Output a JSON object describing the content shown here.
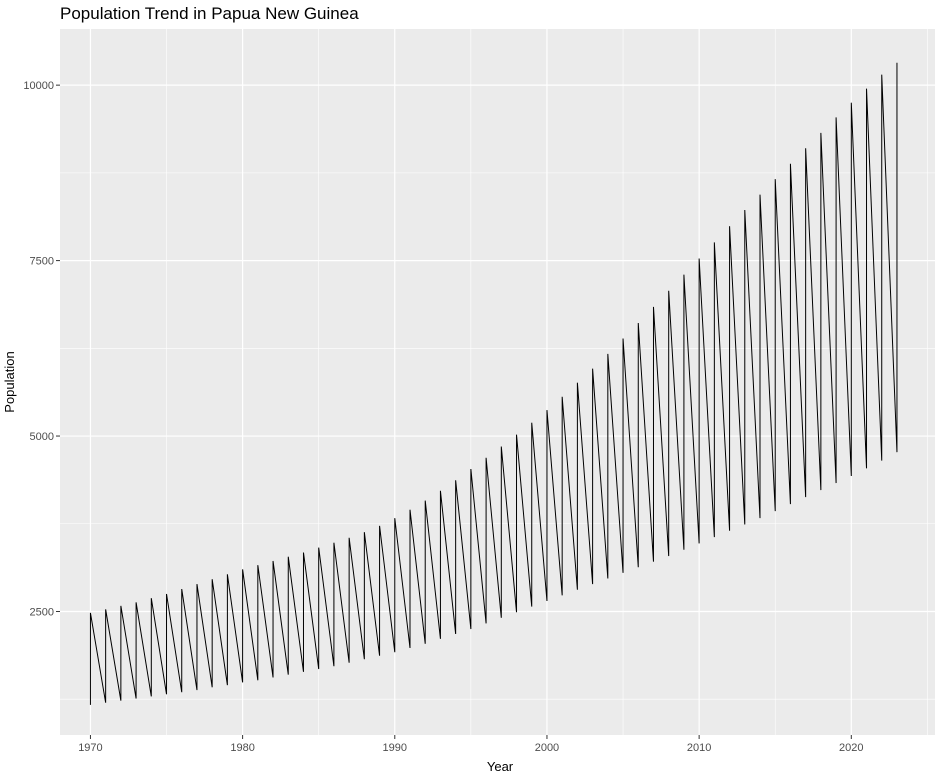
{
  "chart_data": {
    "type": "line",
    "title": "Population Trend in Papua New Guinea",
    "xlabel": "Year",
    "ylabel": "Population",
    "xlim": [
      1968,
      2025.5
    ],
    "ylim": [
      740,
      10800
    ],
    "x_ticks": [
      1970,
      1980,
      1990,
      2000,
      2010,
      2020
    ],
    "y_ticks": [
      2500,
      5000,
      7500,
      10000
    ],
    "grid": true,
    "legend": "none",
    "line_color": "#000000",
    "panel_background": "#ebebeb",
    "grid_color": "#ffffff",
    "series": [
      {
        "description": "Each year the value rises from a low to a high, then drops back to the next year's low (sawtooth).",
        "x": [
          1970,
          2023
        ],
        "year_low": [
          1170,
          1200,
          1230,
          1260,
          1290,
          1320,
          1350,
          1380,
          1420,
          1450,
          1490,
          1520,
          1560,
          1600,
          1640,
          1680,
          1720,
          1770,
          1820,
          1870,
          1920,
          1980,
          2040,
          2110,
          2180,
          2250,
          2330,
          2410,
          2490,
          2570,
          2650,
          2730,
          2810,
          2890,
          2970,
          3050,
          3130,
          3210,
          3290,
          3380,
          3470,
          3560,
          3650,
          3740,
          3830,
          3930,
          4030,
          4130,
          4230,
          4330,
          4430,
          4540,
          4650,
          4770
        ],
        "year_high": [
          2480,
          2530,
          2580,
          2630,
          2690,
          2750,
          2820,
          2890,
          2960,
          3030,
          3100,
          3160,
          3220,
          3280,
          3340,
          3410,
          3480,
          3550,
          3630,
          3720,
          3830,
          3950,
          4080,
          4220,
          4370,
          4530,
          4690,
          4850,
          5020,
          5190,
          5370,
          5560,
          5760,
          5960,
          6170,
          6390,
          6610,
          6840,
          7070,
          7300,
          7530,
          7760,
          7990,
          8220,
          8440,
          8660,
          8880,
          9100,
          9320,
          9540,
          9750,
          9950,
          10150,
          10320
        ],
        "last_point": {
          "x": 2023.0,
          "y": 4990
        }
      }
    ]
  }
}
